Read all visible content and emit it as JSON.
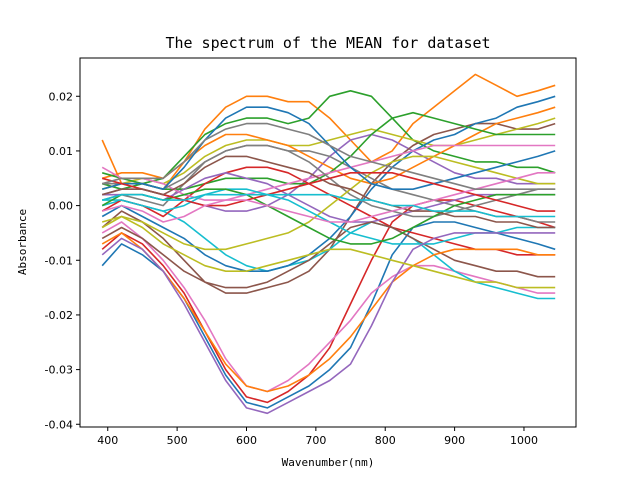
{
  "chart_data": {
    "type": "line",
    "title": "The spectrum of the MEAN for dataset",
    "xlabel": "Wavenumber(nm)",
    "ylabel": "Absorbance",
    "xlim": [
      360,
      1075
    ],
    "ylim": [
      -0.0405,
      0.027
    ],
    "xticks": [
      400,
      500,
      600,
      700,
      800,
      900,
      1000
    ],
    "yticks": [
      -0.04,
      -0.03,
      -0.02,
      -0.01,
      0.0,
      0.01,
      0.02
    ],
    "ytick_labels": [
      "-0.04",
      "-0.03",
      "-0.02",
      "-0.01",
      "0.00",
      "0.01",
      "0.02"
    ],
    "grid": false,
    "legend": "none",
    "colors": [
      "#1f77b4",
      "#ff7f0e",
      "#2ca02c",
      "#d62728",
      "#9467bd",
      "#8c564b",
      "#e377c2",
      "#7f7f7f",
      "#bcbd22",
      "#17becf"
    ],
    "x": [
      392,
      420,
      450,
      480,
      510,
      540,
      570,
      600,
      630,
      660,
      690,
      720,
      750,
      780,
      810,
      840,
      870,
      900,
      930,
      960,
      990,
      1020,
      1045
    ],
    "series": [
      {
        "values": [
          -0.011,
          -0.007,
          -0.009,
          -0.012,
          -0.017,
          -0.024,
          -0.031,
          -0.036,
          -0.037,
          -0.035,
          -0.033,
          -0.03,
          -0.026,
          -0.018,
          -0.009,
          -0.004,
          -0.003,
          -0.003,
          -0.004,
          -0.005,
          -0.006,
          -0.007,
          -0.008
        ]
      },
      {
        "values": [
          0.012,
          0.004,
          0.004,
          0.003,
          0.008,
          0.014,
          0.018,
          0.02,
          0.02,
          0.019,
          0.019,
          0.016,
          0.012,
          0.008,
          0.01,
          0.015,
          0.018,
          0.021,
          0.024,
          0.022,
          0.02,
          0.021,
          0.022
        ]
      },
      {
        "values": [
          0.004,
          0.003,
          0.004,
          0.005,
          0.009,
          0.013,
          0.015,
          0.016,
          0.016,
          0.015,
          0.016,
          0.02,
          0.021,
          0.02,
          0.016,
          0.012,
          0.01,
          0.009,
          0.008,
          0.008,
          0.007,
          0.007,
          0.006
        ]
      },
      {
        "values": [
          -0.008,
          -0.005,
          -0.007,
          -0.011,
          -0.016,
          -0.023,
          -0.03,
          -0.035,
          -0.036,
          -0.034,
          -0.031,
          -0.026,
          -0.018,
          -0.01,
          -0.003,
          0.0,
          0.001,
          0.001,
          0.0,
          -0.001,
          -0.002,
          -0.003,
          -0.004
        ]
      },
      {
        "values": [
          0.002,
          0.003,
          0.003,
          0.002,
          0.001,
          0.0,
          -0.001,
          -0.001,
          0.0,
          0.002,
          0.005,
          0.009,
          0.012,
          0.013,
          0.012,
          0.01,
          0.008,
          0.006,
          0.005,
          0.005,
          0.004,
          0.004,
          0.004
        ]
      },
      {
        "values": [
          -0.004,
          -0.001,
          -0.003,
          -0.006,
          -0.01,
          -0.014,
          -0.016,
          -0.016,
          -0.015,
          -0.014,
          -0.012,
          -0.008,
          -0.002,
          0.004,
          0.008,
          0.011,
          0.013,
          0.014,
          0.015,
          0.015,
          0.014,
          0.014,
          0.015
        ]
      },
      {
        "values": [
          -0.005,
          -0.003,
          -0.006,
          -0.01,
          -0.015,
          -0.021,
          -0.028,
          -0.033,
          -0.034,
          -0.032,
          -0.029,
          -0.025,
          -0.021,
          -0.016,
          -0.013,
          -0.011,
          -0.011,
          -0.012,
          -0.013,
          -0.014,
          -0.015,
          -0.016,
          -0.016
        ]
      },
      {
        "values": [
          0.001,
          0.002,
          0.001,
          0.0,
          0.004,
          0.008,
          0.01,
          0.011,
          0.011,
          0.01,
          0.01,
          0.009,
          0.007,
          0.005,
          0.003,
          0.002,
          0.001,
          0.0,
          -0.001,
          -0.002,
          -0.002,
          -0.003,
          -0.003
        ]
      },
      {
        "values": [
          0.003,
          0.004,
          0.005,
          0.004,
          0.006,
          0.009,
          0.011,
          0.012,
          0.012,
          0.011,
          0.011,
          0.012,
          0.013,
          0.014,
          0.013,
          0.012,
          0.011,
          0.011,
          0.012,
          0.013,
          0.014,
          0.015,
          0.016
        ]
      },
      {
        "values": [
          0.0,
          0.001,
          0.0,
          -0.001,
          -0.003,
          -0.006,
          -0.009,
          -0.011,
          -0.012,
          -0.011,
          -0.01,
          -0.008,
          -0.005,
          -0.003,
          -0.004,
          -0.006,
          -0.009,
          -0.012,
          -0.014,
          -0.015,
          -0.016,
          -0.017,
          -0.017
        ]
      },
      {
        "values": [
          -0.002,
          0.0,
          -0.002,
          -0.004,
          -0.006,
          -0.009,
          -0.011,
          -0.012,
          -0.012,
          -0.011,
          -0.009,
          -0.006,
          -0.002,
          0.003,
          0.007,
          0.01,
          0.012,
          0.013,
          0.015,
          0.016,
          0.018,
          0.019,
          0.02
        ]
      },
      {
        "values": [
          0.005,
          0.006,
          0.006,
          0.005,
          0.008,
          0.011,
          0.013,
          0.013,
          0.012,
          0.011,
          0.009,
          0.007,
          0.005,
          0.004,
          0.005,
          0.007,
          0.009,
          0.011,
          0.013,
          0.015,
          0.016,
          0.017,
          0.018
        ]
      },
      {
        "values": [
          0.006,
          0.005,
          0.004,
          0.003,
          0.003,
          0.004,
          0.005,
          0.005,
          0.005,
          0.004,
          0.004,
          0.006,
          0.009,
          0.013,
          0.016,
          0.017,
          0.016,
          0.015,
          0.014,
          0.013,
          0.013,
          0.013,
          0.013
        ]
      },
      {
        "values": [
          -0.001,
          0.001,
          0.0,
          -0.002,
          0.001,
          0.004,
          0.006,
          0.007,
          0.007,
          0.006,
          0.004,
          0.002,
          0.0,
          -0.002,
          -0.004,
          -0.005,
          -0.006,
          -0.007,
          -0.008,
          -0.008,
          -0.009,
          -0.009,
          -0.009
        ]
      },
      {
        "values": [
          0.002,
          0.002,
          0.002,
          0.001,
          0.003,
          0.005,
          0.006,
          0.005,
          0.004,
          0.002,
          0.0,
          -0.002,
          -0.003,
          -0.003,
          -0.002,
          -0.001,
          0.0,
          0.001,
          0.002,
          0.002,
          0.002,
          0.002,
          0.002
        ]
      },
      {
        "values": [
          -0.006,
          -0.004,
          -0.006,
          -0.009,
          -0.012,
          -0.014,
          -0.015,
          -0.015,
          -0.014,
          -0.012,
          -0.01,
          -0.007,
          -0.004,
          -0.003,
          -0.004,
          -0.006,
          -0.008,
          -0.01,
          -0.011,
          -0.012,
          -0.012,
          -0.013,
          -0.013
        ]
      },
      {
        "values": [
          0.007,
          0.005,
          0.005,
          0.004,
          0.002,
          0.001,
          0.001,
          0.002,
          0.003,
          0.004,
          0.005,
          0.006,
          0.007,
          0.008,
          0.009,
          0.01,
          0.011,
          0.011,
          0.011,
          0.011,
          0.011,
          0.011,
          0.011
        ]
      },
      {
        "values": [
          0.004,
          0.004,
          0.004,
          0.003,
          0.005,
          0.008,
          0.01,
          0.011,
          0.011,
          0.01,
          0.008,
          0.005,
          0.002,
          0.0,
          -0.001,
          -0.002,
          -0.002,
          -0.001,
          0.0,
          0.001,
          0.002,
          0.003,
          0.003
        ]
      },
      {
        "values": [
          -0.003,
          -0.002,
          -0.003,
          -0.005,
          -0.007,
          -0.008,
          -0.008,
          -0.007,
          -0.006,
          -0.005,
          -0.003,
          0.0,
          0.003,
          0.006,
          0.008,
          0.009,
          0.009,
          0.008,
          0.007,
          0.006,
          0.005,
          0.004,
          0.004
        ]
      },
      {
        "values": [
          0.001,
          0.001,
          0.0,
          -0.001,
          0.0,
          0.002,
          0.003,
          0.003,
          0.002,
          0.001,
          -0.001,
          -0.003,
          -0.005,
          -0.006,
          -0.007,
          -0.007,
          -0.007,
          -0.006,
          -0.005,
          -0.005,
          -0.004,
          -0.004,
          -0.004
        ]
      },
      {
        "values": [
          0.003,
          0.004,
          0.004,
          0.003,
          0.007,
          0.012,
          0.016,
          0.018,
          0.018,
          0.017,
          0.015,
          0.011,
          0.007,
          0.004,
          0.003,
          0.003,
          0.004,
          0.005,
          0.006,
          0.007,
          0.008,
          0.009,
          0.01
        ]
      },
      {
        "values": [
          -0.007,
          -0.005,
          -0.008,
          -0.012,
          -0.017,
          -0.023,
          -0.029,
          -0.033,
          -0.034,
          -0.033,
          -0.031,
          -0.028,
          -0.024,
          -0.019,
          -0.014,
          -0.011,
          -0.009,
          -0.008,
          -0.008,
          -0.008,
          -0.008,
          -0.009,
          -0.009
        ]
      },
      {
        "values": [
          0.0,
          0.002,
          0.002,
          0.001,
          0.002,
          0.003,
          0.003,
          0.002,
          0.0,
          -0.002,
          -0.004,
          -0.006,
          -0.007,
          -0.007,
          -0.006,
          -0.004,
          -0.002,
          0.0,
          0.001,
          0.002,
          0.002,
          0.002,
          0.002
        ]
      },
      {
        "values": [
          0.005,
          0.004,
          0.003,
          0.002,
          0.001,
          0.0,
          0.0,
          0.001,
          0.002,
          0.003,
          0.004,
          0.005,
          0.006,
          0.006,
          0.006,
          0.005,
          0.004,
          0.003,
          0.002,
          0.001,
          0.0,
          -0.001,
          -0.001
        ]
      },
      {
        "values": [
          -0.009,
          -0.006,
          -0.008,
          -0.012,
          -0.018,
          -0.025,
          -0.032,
          -0.037,
          -0.038,
          -0.036,
          -0.034,
          -0.032,
          -0.029,
          -0.022,
          -0.014,
          -0.008,
          -0.006,
          -0.005,
          -0.005,
          -0.005,
          -0.005,
          -0.005,
          -0.005
        ]
      },
      {
        "values": [
          0.002,
          0.003,
          0.003,
          0.002,
          0.004,
          0.007,
          0.009,
          0.009,
          0.008,
          0.007,
          0.006,
          0.004,
          0.003,
          0.001,
          0.0,
          -0.001,
          -0.001,
          -0.002,
          -0.002,
          -0.003,
          -0.003,
          -0.004,
          -0.004
        ]
      },
      {
        "values": [
          -0.001,
          0.0,
          -0.001,
          -0.003,
          -0.002,
          0.0,
          0.001,
          0.001,
          0.0,
          -0.001,
          -0.002,
          -0.003,
          -0.003,
          -0.002,
          -0.001,
          0.0,
          0.001,
          0.002,
          0.003,
          0.004,
          0.005,
          0.006,
          0.006
        ]
      },
      {
        "values": [
          0.004,
          0.005,
          0.005,
          0.005,
          0.008,
          0.012,
          0.014,
          0.015,
          0.015,
          0.014,
          0.013,
          0.011,
          0.009,
          0.008,
          0.007,
          0.006,
          0.005,
          0.004,
          0.003,
          0.003,
          0.003,
          0.003,
          0.003
        ]
      },
      {
        "values": [
          -0.004,
          -0.002,
          -0.004,
          -0.007,
          -0.009,
          -0.011,
          -0.012,
          -0.012,
          -0.011,
          -0.01,
          -0.009,
          -0.008,
          -0.008,
          -0.009,
          -0.01,
          -0.011,
          -0.012,
          -0.013,
          -0.014,
          -0.014,
          -0.015,
          -0.015,
          -0.015
        ]
      },
      {
        "values": [
          0.001,
          0.002,
          0.002,
          0.001,
          0.001,
          0.002,
          0.002,
          0.002,
          0.002,
          0.002,
          0.002,
          0.002,
          0.001,
          0.001,
          0.0,
          0.0,
          -0.001,
          -0.001,
          -0.001,
          -0.002,
          -0.002,
          -0.002,
          -0.002
        ]
      }
    ]
  }
}
